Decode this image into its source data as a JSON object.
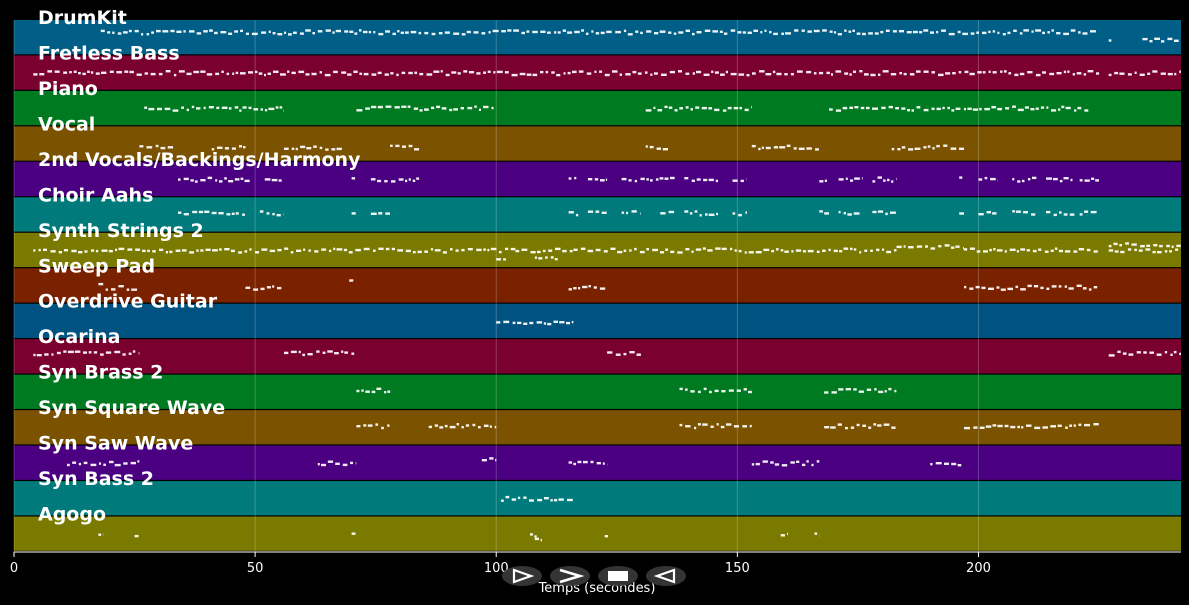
{
  "chart_data": {
    "type": "piano-roll",
    "xlabel": "Temps (secondes)",
    "xlim": [
      0,
      242
    ],
    "xticks": [
      0,
      50,
      100,
      150,
      200
    ],
    "grid": true,
    "tracks": [
      {
        "name": "DrumKit",
        "color": "#005e87",
        "segments": [
          [
            18,
            225,
            0.35
          ],
          [
            227,
            227.8,
            0.6
          ],
          [
            234,
            242,
            0.55
          ]
        ]
      },
      {
        "name": "Fretless Bass",
        "color": "#7a0030",
        "segments": [
          [
            4,
            225,
            0.5
          ],
          [
            227,
            242,
            0.5
          ]
        ]
      },
      {
        "name": "Piano",
        "color": "#007a20",
        "segments": [
          [
            27,
            56,
            0.5
          ],
          [
            71,
            100,
            0.5
          ],
          [
            131,
            153,
            0.5
          ],
          [
            169,
            223,
            0.5
          ]
        ]
      },
      {
        "name": "Vocal",
        "color": "#7a5200",
        "segments": [
          [
            26,
            33,
            0.6
          ],
          [
            41,
            48,
            0.6
          ],
          [
            56,
            68,
            0.6
          ],
          [
            78,
            84,
            0.6
          ],
          [
            131,
            136,
            0.6
          ],
          [
            153,
            167,
            0.6
          ],
          [
            182,
            197,
            0.6
          ]
        ]
      },
      {
        "name": "2nd Vocals/Backings/Harmony",
        "color": "#4a0080",
        "segments": [
          [
            34,
            49,
            0.5
          ],
          [
            52,
            56,
            0.5
          ],
          [
            70,
            71,
            0.5
          ],
          [
            74,
            84,
            0.5
          ],
          [
            115,
            117,
            0.5
          ],
          [
            119,
            123,
            0.5
          ],
          [
            126,
            137,
            0.5
          ],
          [
            139,
            146,
            0.5
          ],
          [
            149,
            152,
            0.5
          ],
          [
            167,
            169,
            0.5
          ],
          [
            171,
            176,
            0.5
          ],
          [
            178,
            183,
            0.5
          ],
          [
            196,
            197,
            0.5
          ],
          [
            200,
            204,
            0.5
          ],
          [
            207,
            212,
            0.5
          ],
          [
            214,
            220,
            0.5
          ],
          [
            221,
            225,
            0.5
          ]
        ]
      },
      {
        "name": "Choir Aahs",
        "color": "#007a7a",
        "segments": [
          [
            34,
            48,
            0.45
          ],
          [
            51,
            56,
            0.45
          ],
          [
            70,
            71,
            0.45
          ],
          [
            74,
            78,
            0.45
          ],
          [
            115,
            117,
            0.45
          ],
          [
            119,
            123,
            0.45
          ],
          [
            126,
            130,
            0.45
          ],
          [
            134,
            137,
            0.45
          ],
          [
            139,
            146,
            0.45
          ],
          [
            149,
            152,
            0.45
          ],
          [
            167,
            169,
            0.45
          ],
          [
            171,
            176,
            0.45
          ],
          [
            178,
            183,
            0.45
          ],
          [
            196,
            197,
            0.45
          ],
          [
            200,
            204,
            0.45
          ],
          [
            207,
            212,
            0.45
          ],
          [
            214,
            220,
            0.45
          ],
          [
            221,
            225,
            0.45
          ]
        ]
      },
      {
        "name": "Synth Strings 2",
        "color": "#7a7a00",
        "segments": [
          [
            4,
            104,
            0.5
          ],
          [
            100,
            102,
            0.75
          ],
          [
            104,
            116,
            0.5
          ],
          [
            108,
            113,
            0.7
          ],
          [
            116,
            183,
            0.5
          ],
          [
            183,
            197,
            0.4
          ],
          [
            197,
            225,
            0.5
          ],
          [
            227,
            242,
            0.35
          ],
          [
            227,
            242,
            0.5
          ]
        ]
      },
      {
        "name": "Sweep Pad",
        "color": "#7a2200",
        "segments": [
          [
            17.5,
            18.5,
            0.4
          ],
          [
            19,
            26,
            0.55
          ],
          [
            48,
            56,
            0.55
          ],
          [
            69.5,
            70.5,
            0.4
          ],
          [
            115,
            123,
            0.55
          ],
          [
            197,
            225,
            0.55
          ]
        ]
      },
      {
        "name": "Overdrive Guitar",
        "color": "#005280",
        "segments": [
          [
            100,
            116,
            0.55
          ]
        ]
      },
      {
        "name": "Ocarina",
        "color": "#7a0030",
        "segments": [
          [
            4,
            26,
            0.4
          ],
          [
            56,
            71,
            0.4
          ],
          [
            123,
            130,
            0.4
          ],
          [
            227,
            242,
            0.4
          ]
        ]
      },
      {
        "name": "Syn Brass 2",
        "color": "#007a20",
        "segments": [
          [
            71,
            78,
            0.45
          ],
          [
            138,
            153,
            0.45
          ],
          [
            168,
            183,
            0.45
          ]
        ]
      },
      {
        "name": "Syn Square Wave",
        "color": "#7a5200",
        "segments": [
          [
            71,
            78,
            0.45
          ],
          [
            86,
            100,
            0.45
          ],
          [
            138,
            153,
            0.45
          ],
          [
            168,
            183,
            0.45
          ],
          [
            197,
            225,
            0.45
          ]
        ]
      },
      {
        "name": "Syn Saw Wave",
        "color": "#4a0080",
        "segments": [
          [
            11,
            26,
            0.5
          ],
          [
            63,
            71,
            0.5
          ],
          [
            97,
            100,
            0.4
          ],
          [
            115,
            123,
            0.5
          ],
          [
            153,
            167,
            0.5
          ],
          [
            190,
            197,
            0.5
          ]
        ]
      },
      {
        "name": "Syn Bass 2",
        "color": "#007a7a",
        "segments": [
          [
            101,
            116,
            0.5
          ]
        ]
      },
      {
        "name": "Agogo",
        "color": "#7a7a00",
        "segments": [
          [
            17.5,
            18.5,
            0.5
          ],
          [
            25,
            25.8,
            0.5
          ],
          [
            70,
            70.8,
            0.5
          ],
          [
            107,
            108.5,
            0.55
          ],
          [
            108,
            109.5,
            0.65
          ],
          [
            122.5,
            123.2,
            0.5
          ],
          [
            159,
            160.5,
            0.5
          ],
          [
            166,
            167,
            0.5
          ]
        ]
      }
    ]
  },
  "controls": [
    {
      "name": "play-button",
      "icon": "play-icon",
      "glyph": "play"
    },
    {
      "name": "forward-button",
      "icon": "forward-icon",
      "glyph": "chevron"
    },
    {
      "name": "stop-button",
      "icon": "stop-icon",
      "glyph": "stop"
    },
    {
      "name": "rewind-button",
      "icon": "rewind-icon",
      "glyph": "rewind"
    }
  ]
}
